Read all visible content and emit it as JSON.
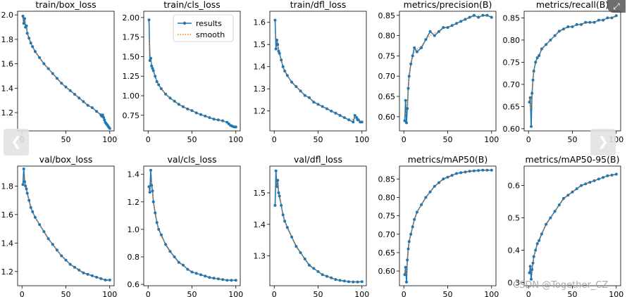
{
  "watermark": "CSDN @Together_CZ",
  "nav": {
    "prev_icon": "chevron-left-icon",
    "next_icon": "chevron-right-icon",
    "zoom_icon": "zoom-icon"
  },
  "legend": {
    "results_label": "results",
    "smooth_label": "smooth"
  },
  "colors": {
    "results": "#1f77b4",
    "smooth": "#ff7f0e"
  },
  "chart_data": [
    {
      "type": "line",
      "title": "train/box_loss",
      "xlim": [
        -5,
        105
      ],
      "ylim": [
        1.05,
        2.03
      ],
      "xticks": [
        0,
        50,
        100
      ],
      "yticks": [
        1.2,
        1.4,
        1.6,
        1.8,
        2.0
      ],
      "ytick_labels": [
        "1.2",
        "1.4",
        "1.6",
        "1.8",
        "2.0"
      ],
      "legend": false,
      "x": [
        1,
        2,
        3,
        4,
        5,
        6,
        8,
        10,
        12,
        15,
        20,
        25,
        30,
        35,
        40,
        45,
        50,
        55,
        60,
        65,
        70,
        75,
        80,
        85,
        90,
        91,
        92,
        93,
        94,
        95,
        96,
        97,
        98,
        99,
        100
      ],
      "y": [
        1.99,
        1.93,
        1.97,
        1.9,
        1.91,
        1.85,
        1.81,
        1.77,
        1.74,
        1.7,
        1.65,
        1.6,
        1.56,
        1.52,
        1.48,
        1.44,
        1.41,
        1.38,
        1.35,
        1.32,
        1.29,
        1.26,
        1.24,
        1.21,
        1.18,
        1.17,
        1.18,
        1.16,
        1.14,
        1.12,
        1.11,
        1.1,
        1.09,
        1.08,
        1.07
      ]
    },
    {
      "type": "line",
      "title": "train/cls_loss",
      "xlim": [
        -5,
        105
      ],
      "ylim": [
        0.55,
        2.08
      ],
      "xticks": [
        0,
        50,
        100
      ],
      "yticks": [
        0.75,
        1.0,
        1.25,
        1.5,
        1.75,
        2.0
      ],
      "ytick_labels": [
        "0.75",
        "1.00",
        "1.25",
        "1.50",
        "1.75",
        "2.00"
      ],
      "legend": true,
      "x": [
        1,
        2,
        3,
        4,
        5,
        6,
        8,
        10,
        12,
        15,
        20,
        25,
        30,
        35,
        40,
        45,
        50,
        55,
        60,
        65,
        70,
        75,
        80,
        85,
        90,
        92,
        94,
        96,
        98,
        100
      ],
      "y": [
        1.97,
        1.45,
        1.48,
        1.38,
        1.35,
        1.32,
        1.25,
        1.18,
        1.14,
        1.09,
        1.02,
        0.97,
        0.93,
        0.89,
        0.86,
        0.83,
        0.81,
        0.78,
        0.76,
        0.74,
        0.72,
        0.7,
        0.69,
        0.68,
        0.66,
        0.64,
        0.62,
        0.61,
        0.6,
        0.6
      ]
    },
    {
      "type": "line",
      "title": "train/dfl_loss",
      "xlim": [
        -5,
        105
      ],
      "ylim": [
        1.11,
        1.65
      ],
      "xticks": [
        0,
        50,
        100
      ],
      "yticks": [
        1.2,
        1.3,
        1.4,
        1.5,
        1.6
      ],
      "ytick_labels": [
        "1.2",
        "1.3",
        "1.4",
        "1.5",
        "1.6"
      ],
      "legend": false,
      "x": [
        1,
        2,
        3,
        4,
        5,
        6,
        8,
        10,
        12,
        15,
        20,
        25,
        30,
        35,
        40,
        45,
        50,
        55,
        60,
        65,
        70,
        75,
        80,
        85,
        90,
        92,
        94,
        95,
        96,
        98,
        100
      ],
      "y": [
        1.61,
        1.48,
        1.52,
        1.5,
        1.47,
        1.46,
        1.43,
        1.4,
        1.38,
        1.36,
        1.33,
        1.31,
        1.29,
        1.27,
        1.26,
        1.24,
        1.23,
        1.22,
        1.21,
        1.2,
        1.19,
        1.18,
        1.17,
        1.16,
        1.15,
        1.18,
        1.17,
        1.16,
        1.16,
        1.15,
        1.15
      ]
    },
    {
      "type": "line",
      "title": "metrics/precision(B)",
      "xlim": [
        -5,
        105
      ],
      "ylim": [
        0.565,
        0.86
      ],
      "xticks": [
        0,
        50,
        100
      ],
      "yticks": [
        0.6,
        0.65,
        0.7,
        0.75,
        0.8,
        0.85
      ],
      "ytick_labels": [
        "0.60",
        "0.65",
        "0.70",
        "0.75",
        "0.80",
        "0.85"
      ],
      "legend": false,
      "x": [
        1,
        2,
        3,
        4,
        5,
        6,
        8,
        10,
        12,
        15,
        20,
        25,
        30,
        35,
        40,
        45,
        50,
        55,
        60,
        65,
        70,
        75,
        80,
        85,
        90,
        95,
        100
      ],
      "y": [
        0.59,
        0.64,
        0.585,
        0.62,
        0.67,
        0.7,
        0.73,
        0.75,
        0.77,
        0.76,
        0.77,
        0.79,
        0.81,
        0.8,
        0.81,
        0.82,
        0.82,
        0.825,
        0.83,
        0.835,
        0.84,
        0.845,
        0.85,
        0.845,
        0.85,
        0.85,
        0.845
      ]
    },
    {
      "type": "line",
      "title": "metrics/recall(B)",
      "xlim": [
        -5,
        105
      ],
      "ylim": [
        0.595,
        0.865
      ],
      "xticks": [
        0,
        50,
        100
      ],
      "yticks": [
        0.6,
        0.65,
        0.7,
        0.75,
        0.8,
        0.85
      ],
      "ytick_labels": [
        "0.60",
        "0.65",
        "0.70",
        "0.75",
        "0.80",
        "0.85"
      ],
      "legend": false,
      "x": [
        1,
        2,
        3,
        4,
        5,
        6,
        8,
        10,
        12,
        15,
        20,
        25,
        30,
        35,
        40,
        45,
        50,
        55,
        60,
        65,
        70,
        75,
        80,
        85,
        90,
        95,
        100
      ],
      "y": [
        0.66,
        0.67,
        0.605,
        0.68,
        0.71,
        0.73,
        0.75,
        0.76,
        0.765,
        0.78,
        0.79,
        0.8,
        0.81,
        0.82,
        0.825,
        0.83,
        0.83,
        0.835,
        0.835,
        0.84,
        0.84,
        0.84,
        0.845,
        0.845,
        0.85,
        0.85,
        0.855
      ]
    },
    {
      "type": "line",
      "title": "val/box_loss",
      "xlim": [
        -5,
        105
      ],
      "ylim": [
        1.1,
        1.94
      ],
      "xticks": [
        0,
        50,
        100
      ],
      "yticks": [
        1.2,
        1.4,
        1.6,
        1.8
      ],
      "ytick_labels": [
        "1.2",
        "1.4",
        "1.6",
        "1.8"
      ],
      "legend": false,
      "x": [
        1,
        2,
        3,
        4,
        5,
        6,
        8,
        10,
        12,
        15,
        20,
        25,
        30,
        35,
        40,
        45,
        50,
        55,
        60,
        65,
        70,
        75,
        80,
        85,
        90,
        95,
        100
      ],
      "y": [
        1.81,
        1.92,
        1.83,
        1.8,
        1.78,
        1.75,
        1.7,
        1.65,
        1.62,
        1.58,
        1.53,
        1.48,
        1.43,
        1.39,
        1.35,
        1.31,
        1.28,
        1.25,
        1.23,
        1.21,
        1.19,
        1.18,
        1.17,
        1.16,
        1.15,
        1.14,
        1.14
      ]
    },
    {
      "type": "line",
      "title": "val/cls_loss",
      "xlim": [
        -5,
        105
      ],
      "ylim": [
        0.59,
        1.46
      ],
      "xticks": [
        0,
        50,
        100
      ],
      "yticks": [
        0.6,
        0.8,
        1.0,
        1.2,
        1.4
      ],
      "ytick_labels": [
        "0.6",
        "0.8",
        "1.0",
        "1.2",
        "1.4"
      ],
      "legend": false,
      "x": [
        1,
        2,
        3,
        4,
        5,
        6,
        8,
        10,
        12,
        15,
        20,
        25,
        30,
        35,
        40,
        45,
        50,
        55,
        60,
        65,
        70,
        75,
        80,
        85,
        90,
        95,
        100
      ],
      "y": [
        1.31,
        1.27,
        1.43,
        1.32,
        1.28,
        1.2,
        1.12,
        1.05,
        1.0,
        0.96,
        0.89,
        0.84,
        0.8,
        0.76,
        0.74,
        0.71,
        0.69,
        0.68,
        0.67,
        0.66,
        0.65,
        0.645,
        0.64,
        0.635,
        0.63,
        0.63,
        0.63
      ]
    },
    {
      "type": "line",
      "title": "val/dfl_loss",
      "xlim": [
        -5,
        105
      ],
      "ylim": [
        1.205,
        1.585
      ],
      "xticks": [
        0,
        50,
        100
      ],
      "yticks": [
        1.3,
        1.4,
        1.5
      ],
      "ytick_labels": [
        "1.3",
        "1.4",
        "1.5"
      ],
      "legend": false,
      "x": [
        1,
        2,
        3,
        4,
        5,
        6,
        8,
        10,
        12,
        15,
        20,
        25,
        30,
        35,
        40,
        45,
        50,
        55,
        60,
        65,
        70,
        75,
        80,
        85,
        90,
        95,
        100
      ],
      "y": [
        1.46,
        1.57,
        1.52,
        1.54,
        1.5,
        1.49,
        1.46,
        1.43,
        1.41,
        1.39,
        1.36,
        1.33,
        1.31,
        1.29,
        1.27,
        1.26,
        1.25,
        1.24,
        1.235,
        1.23,
        1.225,
        1.222,
        1.22,
        1.218,
        1.217,
        1.217,
        1.218
      ]
    },
    {
      "type": "line",
      "title": "metrics/mAP50(B)",
      "xlim": [
        -5,
        105
      ],
      "ylim": [
        0.56,
        0.885
      ],
      "xticks": [
        0,
        50,
        100
      ],
      "yticks": [
        0.6,
        0.65,
        0.7,
        0.75,
        0.8,
        0.85
      ],
      "ytick_labels": [
        "0.60",
        "0.65",
        "0.70",
        "0.75",
        "0.80",
        "0.85"
      ],
      "legend": false,
      "x": [
        1,
        2,
        3,
        4,
        5,
        6,
        8,
        10,
        12,
        15,
        20,
        25,
        30,
        35,
        40,
        45,
        50,
        55,
        60,
        65,
        70,
        75,
        80,
        85,
        90,
        95,
        100
      ],
      "y": [
        0.59,
        0.61,
        0.57,
        0.63,
        0.66,
        0.68,
        0.7,
        0.72,
        0.74,
        0.76,
        0.78,
        0.8,
        0.815,
        0.83,
        0.84,
        0.85,
        0.855,
        0.86,
        0.865,
        0.867,
        0.869,
        0.871,
        0.872,
        0.873,
        0.874,
        0.874,
        0.874
      ]
    },
    {
      "type": "line",
      "title": "metrics/mAP50-95(B)",
      "xlim": [
        -5,
        105
      ],
      "ylim": [
        0.29,
        0.66
      ],
      "xticks": [
        0,
        50,
        100
      ],
      "yticks": [
        0.3,
        0.4,
        0.5,
        0.6
      ],
      "ytick_labels": [
        "0.3",
        "0.4",
        "0.5",
        "0.6"
      ],
      "legend": false,
      "x": [
        1,
        2,
        3,
        4,
        5,
        6,
        8,
        10,
        12,
        15,
        20,
        25,
        30,
        35,
        40,
        45,
        50,
        55,
        60,
        65,
        70,
        75,
        80,
        85,
        90,
        95,
        100
      ],
      "y": [
        0.33,
        0.35,
        0.31,
        0.34,
        0.36,
        0.38,
        0.4,
        0.42,
        0.43,
        0.45,
        0.48,
        0.5,
        0.52,
        0.54,
        0.56,
        0.57,
        0.58,
        0.59,
        0.6,
        0.605,
        0.61,
        0.615,
        0.62,
        0.625,
        0.63,
        0.632,
        0.635
      ]
    }
  ]
}
